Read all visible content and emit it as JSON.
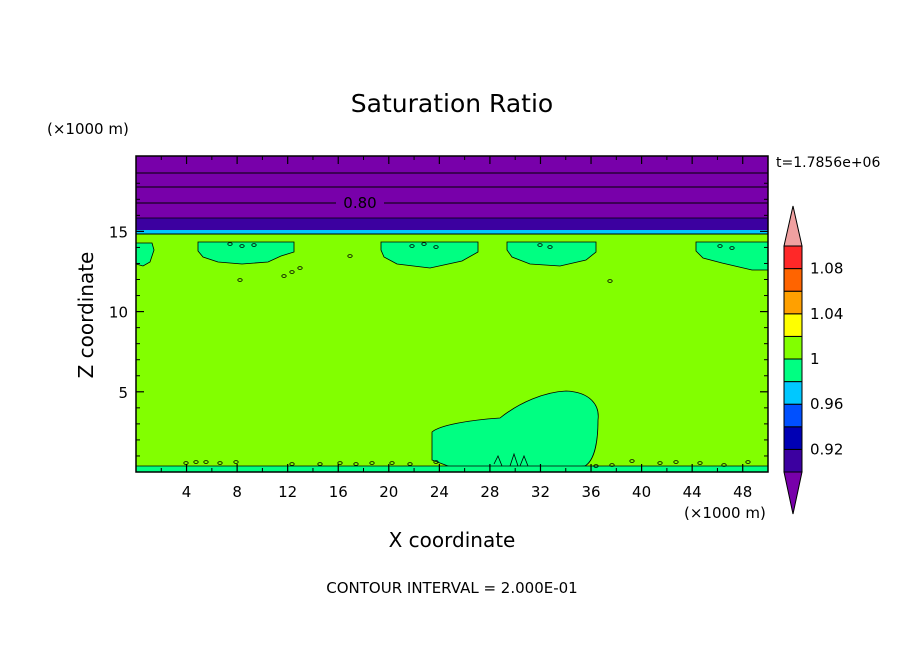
{
  "chart_data": {
    "type": "contour",
    "title": "Saturation Ratio",
    "xlabel": "X coordinate",
    "ylabel": "Z coordinate",
    "x_unit": "(×1000 m)",
    "z_unit": "(×1000 m)",
    "time_label": "t=1.7856e+06",
    "footer": "CONTOUR INTERVAL = 2.000E-01",
    "xlim": [
      0,
      50
    ],
    "zlim": [
      0,
      19.7
    ],
    "x_ticks": [
      "4",
      "8",
      "12",
      "16",
      "20",
      "24",
      "28",
      "32",
      "36",
      "40",
      "44",
      "48"
    ],
    "z_ticks": [
      "5",
      "10",
      "15"
    ],
    "contour_label": "0.80",
    "colorbar": {
      "levels": [
        0.9,
        0.92,
        0.94,
        0.96,
        0.98,
        1.0,
        1.02,
        1.04,
        1.06,
        1.08,
        1.1
      ],
      "tick_labels": [
        "0.92",
        "0.96",
        "1",
        "1.04",
        "1.08"
      ],
      "colors": [
        "#7800aa",
        "#3c00a0",
        "#0000b4",
        "#0050ff",
        "#00c8ff",
        "#00ff82",
        "#82ff00",
        "#ffff00",
        "#ffa000",
        "#ff6400",
        "#ff2828",
        "#f0a0a0"
      ]
    },
    "colors": {
      "background_field": "#82ff00",
      "moist_regions": "#00ff82",
      "upper_layer": "#7800aa",
      "transition_layer": "#3c00a0",
      "thin_band": "#00c8ff"
    }
  }
}
